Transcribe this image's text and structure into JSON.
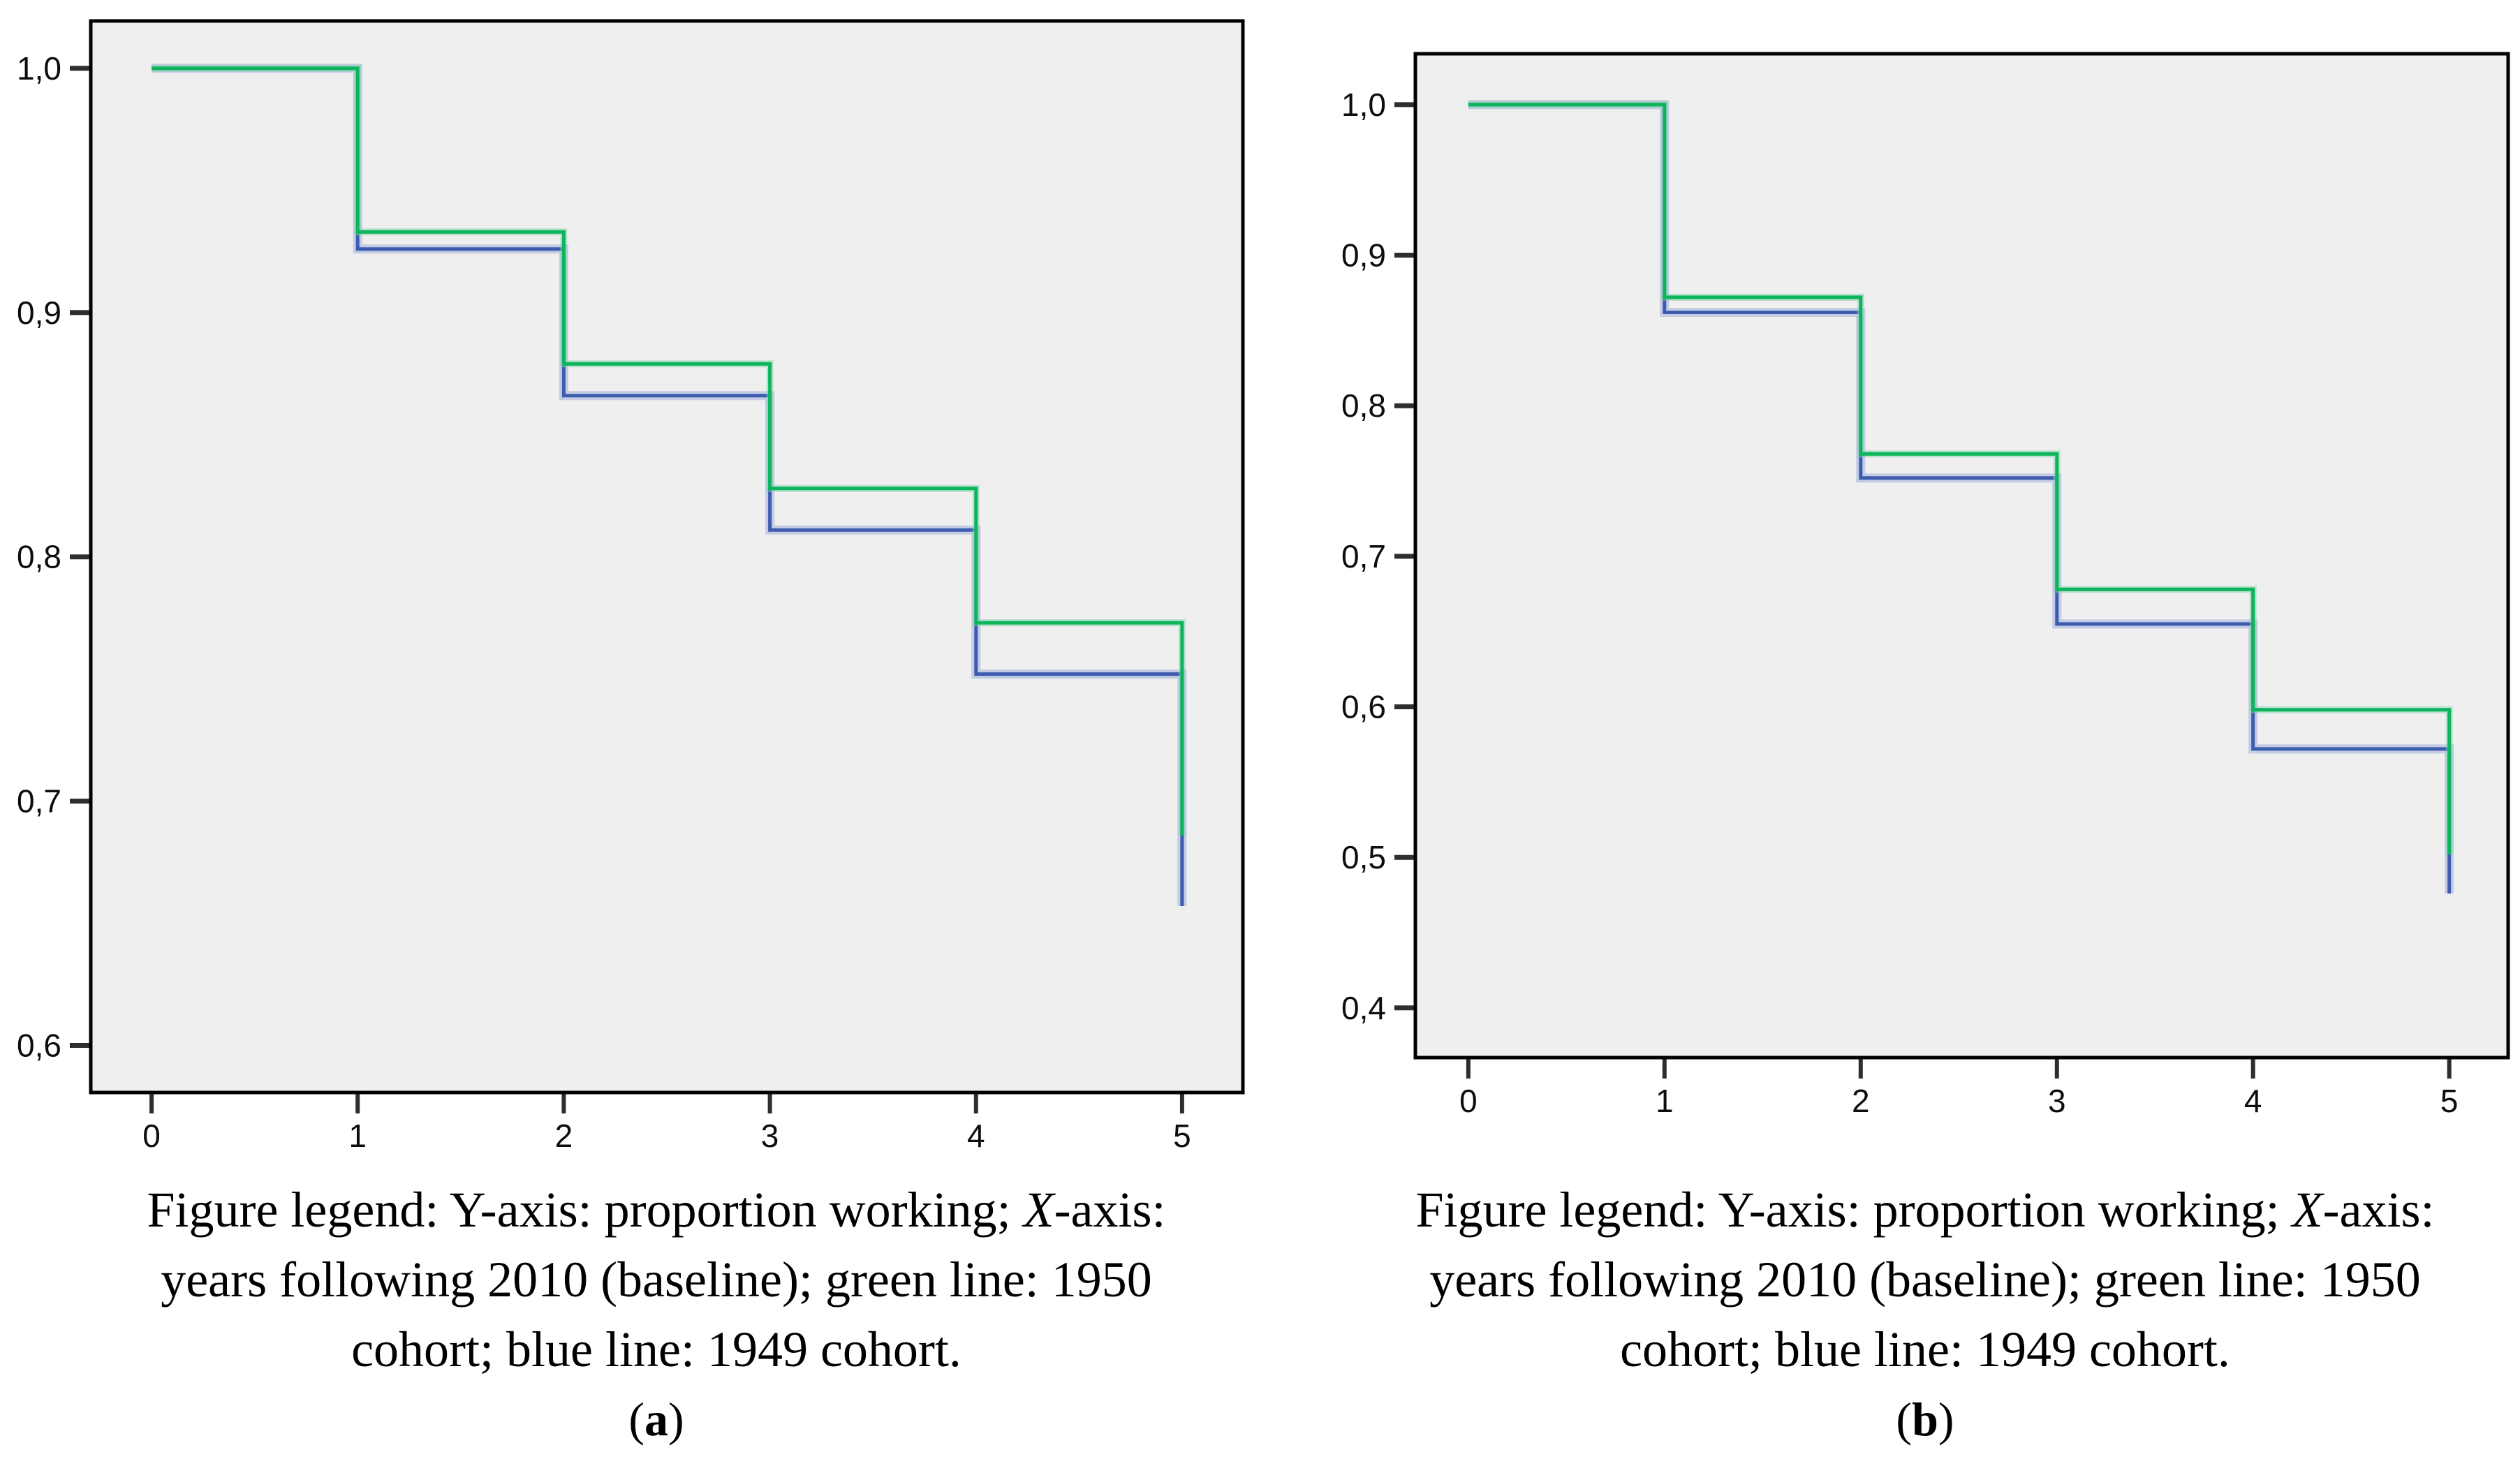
{
  "page": {
    "background": "#ffffff",
    "plot_background": "#efefef"
  },
  "panels": [
    {
      "id": "a",
      "caption": {
        "line1_pre": "Figure legend: Y-axis: proportion working; ",
        "line1_italic_x": "X",
        "line1_post": "-axis:",
        "line2": "years following 2010 (baseline); green line: 1950",
        "line3": "cohort; blue line: 1949 cohort.",
        "label_open": "(",
        "label_letter": "a",
        "label_close": ")"
      }
    },
    {
      "id": "b",
      "caption": {
        "line1_pre": "Figure legend: Y-axis: proportion working; ",
        "line1_italic_x": "X",
        "line1_post": "-axis:",
        "line2": "years following 2010 (baseline); green line: 1950",
        "line3": "cohort; blue line: 1949 cohort.",
        "label_open": "(",
        "label_letter": "b",
        "label_close": ")"
      }
    }
  ],
  "chart_data": [
    {
      "type": "line",
      "subtype": "step-survival-curve",
      "panel": "a",
      "title": "(a)",
      "ylabel": "proportion working",
      "xlabel": "years following 2010 (baseline)",
      "grid": false,
      "legend_position": "none (described in caption text)",
      "x_ticks": [
        0,
        1,
        2,
        3,
        4,
        5
      ],
      "x_tick_labels": [
        "0",
        "1",
        "2",
        "3",
        "4",
        "5"
      ],
      "y_ticks": [
        1.0,
        0.9,
        0.8,
        0.7,
        0.6
      ],
      "y_tick_labels": [
        "1,0",
        "0,9",
        "0,8",
        "0,7",
        "0,6"
      ],
      "xlim": [
        -0.295,
        5.295
      ],
      "ylim": [
        0.5807,
        1.0194
      ],
      "step_note": "step_levels[i] holds on x-interval [i, i+1); final vertical drop at x=5 down to final_value",
      "series": [
        {
          "name": "1949 cohort",
          "color": "#3d5cae",
          "halo_color": "#8fa2d8",
          "halo_opacity": 0.45,
          "halo_width": 13,
          "step_levels": [
            1.0,
            0.926,
            0.866,
            0.811,
            0.752
          ],
          "final_value": 0.657
        },
        {
          "name": "1950 cohort",
          "color": "#0cb45c",
          "halo_color": "#7fd4ab",
          "halo_opacity": 0.5,
          "halo_width": 10,
          "step_levels": [
            1.0,
            0.933,
            0.879,
            0.828,
            0.773
          ],
          "final_value": 0.686
        }
      ]
    },
    {
      "type": "line",
      "subtype": "step-survival-curve",
      "panel": "b",
      "title": "(b)",
      "ylabel": "proportion working",
      "xlabel": "years following 2010 (baseline)",
      "grid": false,
      "legend_position": "none (described in caption text)",
      "x_ticks": [
        0,
        1,
        2,
        3,
        4,
        5
      ],
      "x_tick_labels": [
        "0",
        "1",
        "2",
        "3",
        "4",
        "5"
      ],
      "y_ticks": [
        1.0,
        0.9,
        0.8,
        0.7,
        0.6,
        0.5,
        0.4
      ],
      "y_tick_labels": [
        "1,0",
        "0,9",
        "0,8",
        "0,7",
        "0,6",
        "0,5",
        "0,4"
      ],
      "xlim": [
        -0.27,
        5.3
      ],
      "ylim": [
        0.367,
        1.0338
      ],
      "step_note": "step_levels[i] holds on x-interval [i, i+1); final vertical drop at x=5 down to final_value",
      "series": [
        {
          "name": "1949 cohort",
          "color": "#3d5cae",
          "halo_color": "#8fa2d8",
          "halo_opacity": 0.45,
          "halo_width": 13,
          "step_levels": [
            1.0,
            0.862,
            0.752,
            0.655,
            0.572
          ],
          "final_value": 0.476
        },
        {
          "name": "1950 cohort",
          "color": "#0cb45c",
          "halo_color": "#7fd4ab",
          "halo_opacity": 0.5,
          "halo_width": 10,
          "step_levels": [
            1.0,
            0.872,
            0.768,
            0.678,
            0.598
          ],
          "final_value": 0.502
        }
      ]
    }
  ]
}
